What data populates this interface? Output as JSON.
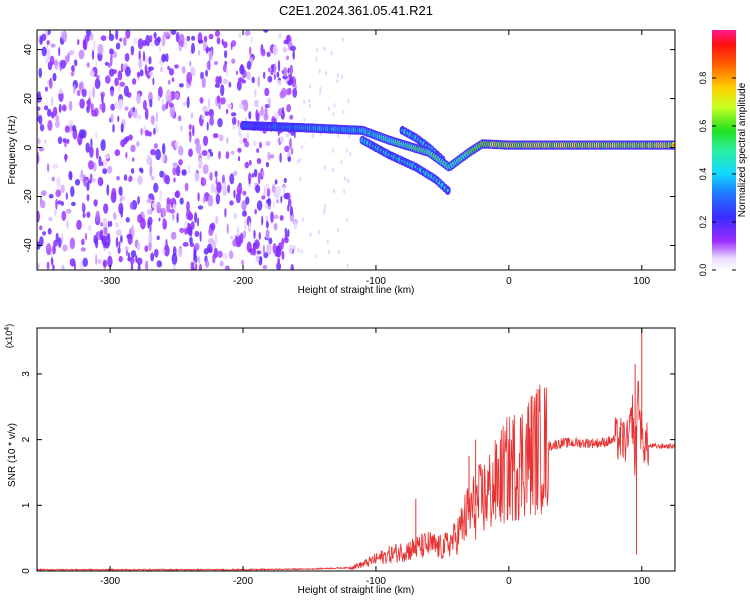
{
  "figure_title": "C2E1.2024.361.05.41.R21",
  "chart_data": [
    {
      "type": "heatmap",
      "xlabel": "Height of straight line (km)",
      "ylabel": "Frequency (Hz)",
      "xlim": [
        -355,
        125
      ],
      "ylim": [
        -50,
        48
      ],
      "xticks": [
        -300,
        -200,
        -100,
        0,
        100
      ],
      "yticks": [
        -40,
        -20,
        0,
        20,
        40
      ],
      "colorbar": {
        "label": "Normalized spectral amplitude",
        "range": [
          0,
          1
        ],
        "ticks": [
          "0.0",
          "0.2",
          "0.4",
          "0.6",
          "0.8"
        ],
        "colormap": "rainbow (white → violet → blue → cyan → green → yellow → red → magenta)"
      },
      "features": [
        {
          "name": "diffuse low-amplitude noise",
          "x_range": [
            -355,
            -160
          ],
          "y_range": [
            -50,
            48
          ],
          "amplitude": 0.15
        },
        {
          "name": "main band",
          "x": [
            -200,
            -150,
            -110,
            -90,
            -60,
            -45,
            -30,
            -20,
            0,
            60,
            90,
            125
          ],
          "y": [
            9,
            8,
            7,
            3,
            -2,
            -8,
            -2,
            1.5,
            1,
            1,
            1,
            1
          ],
          "amplitude": [
            0.3,
            0.4,
            0.45,
            0.55,
            0.6,
            0.5,
            0.6,
            0.7,
            0.75,
            0.75,
            0.7,
            0.75
          ]
        },
        {
          "name": "lower branch",
          "x": [
            -110,
            -90,
            -70,
            -55,
            -45
          ],
          "y": [
            3,
            -3,
            -8,
            -13,
            -18
          ],
          "amplitude": 0.4
        },
        {
          "name": "upper branch",
          "x": [
            -80,
            -70,
            -60,
            -50
          ],
          "y": [
            7,
            4,
            0,
            -5
          ],
          "amplitude": 0.4
        }
      ]
    },
    {
      "type": "line",
      "xlabel": "Height of straight line (km)",
      "ylabel": "SNR (10 * v/v)",
      "y_multiplier": "(x10^4)",
      "xlim": [
        -355,
        125
      ],
      "ylim": [
        0,
        3.7
      ],
      "xticks": [
        -300,
        -200,
        -100,
        0,
        100
      ],
      "yticks": [
        0,
        1,
        2,
        3
      ],
      "color": "#e83030",
      "x": [
        -355,
        -300,
        -250,
        -200,
        -150,
        -120,
        -110,
        -100,
        -90,
        -80,
        -70,
        -60,
        -50,
        -40,
        -35,
        -30,
        -25,
        -20,
        -15,
        -10,
        -5,
        0,
        10,
        20,
        30,
        40,
        50,
        60,
        70,
        80,
        85,
        90,
        93,
        95,
        97,
        100,
        105,
        110,
        115,
        125
      ],
      "y": [
        0.02,
        0.02,
        0.02,
        0.02,
        0.03,
        0.05,
        0.1,
        0.18,
        0.25,
        0.3,
        0.35,
        0.4,
        0.35,
        0.5,
        0.7,
        0.9,
        1.0,
        1.1,
        1.2,
        1.3,
        1.45,
        1.55,
        1.7,
        1.85,
        1.9,
        1.95,
        1.95,
        1.95,
        1.95,
        2.0,
        2.0,
        1.95,
        2.4,
        1.6,
        2.8,
        2.0,
        1.9,
        1.9,
        1.9,
        1.9
      ],
      "spikes": [
        {
          "x": -70,
          "y": 1.1
        },
        {
          "x": -30,
          "y": 1.75
        },
        {
          "x": -25,
          "y": 2.0
        },
        {
          "x": 95,
          "y": 3.15
        },
        {
          "x": 96,
          "y": 0.25
        },
        {
          "x": 100,
          "y": 3.7
        }
      ]
    }
  ]
}
